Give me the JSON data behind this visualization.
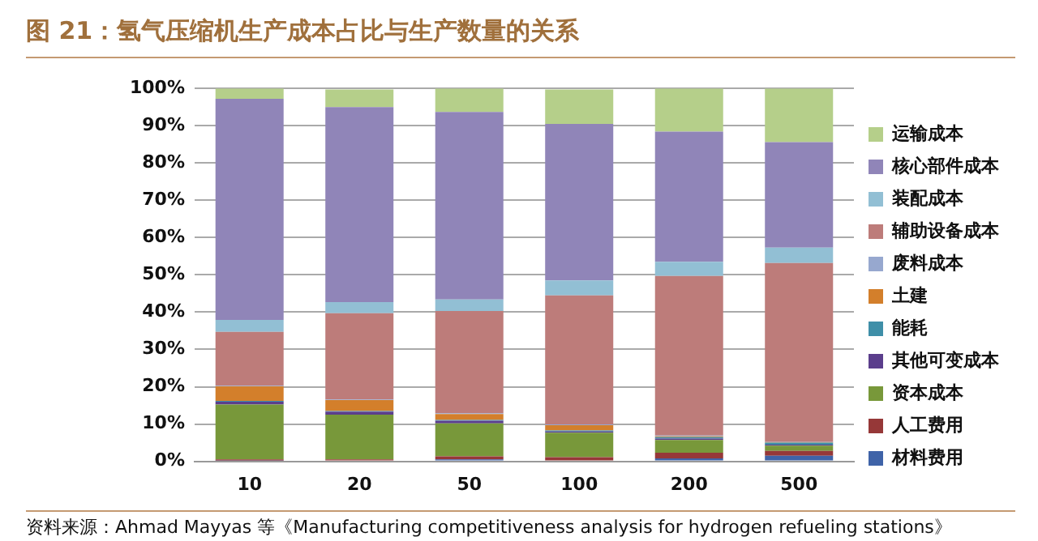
{
  "chart_data": {
    "type": "bar",
    "title": "图 21：氢气压缩机生产成本占比与生产数量的关系",
    "categories": [
      "10",
      "20",
      "50",
      "100",
      "200",
      "500"
    ],
    "stacked": true,
    "series": [
      {
        "name": "材料费用",
        "color": "#3f63a8",
        "values": [
          0.2,
          null,
          0.5,
          null,
          0.8,
          1.5
        ]
      },
      {
        "name": "人工费用",
        "color": "#963838",
        "values": [
          0.3,
          0.5,
          0.8,
          1.1,
          1.5,
          1.3
        ]
      },
      {
        "name": "资本成本",
        "color": "#78983a",
        "values": [
          14.7,
          12.0,
          8.9,
          6.6,
          3.4,
          1.4
        ]
      },
      {
        "name": "其他可变成本",
        "color": "#5b3e8c",
        "values": [
          0.8,
          0.8,
          0.7,
          0.3,
          0.4,
          0.3
        ]
      },
      {
        "name": "能耗",
        "color": "#3f8fa8",
        "values": [
          0.2,
          0.2,
          0.2,
          0.3,
          0.4,
          0.5
        ]
      },
      {
        "name": "土建",
        "color": "#d37f2b",
        "values": [
          3.9,
          2.9,
          1.6,
          1.4,
          0.2,
          0.1
        ]
      },
      {
        "name": "废料成本",
        "color": "#97a8cf",
        "values": [
          0.2,
          0.2,
          0.2,
          0.2,
          0.2,
          0.1
        ]
      },
      {
        "name": "辅助设备成本",
        "color": "#bd7c7a",
        "values": [
          14.4,
          23.1,
          27.4,
          34.6,
          42.8,
          48.0
        ]
      },
      {
        "name": "装配成本",
        "color": "#92bfd4",
        "values": [
          3.2,
          3.0,
          3.1,
          4.0,
          3.8,
          4.1
        ]
      },
      {
        "name": "核心部件成本",
        "color": "#9085b8",
        "values": [
          59.3,
          52.3,
          50.3,
          42.0,
          34.9,
          28.3
        ]
      },
      {
        "name": "运输成本",
        "color": "#b5cf8a",
        "values": [
          2.8,
          4.7,
          6.3,
          9.2,
          11.6,
          14.4
        ]
      }
    ],
    "ylim": [
      0,
      100
    ],
    "yticks": [
      {
        "value": 0,
        "label": "0%"
      },
      {
        "value": 10,
        "label": "10%"
      },
      {
        "value": 20,
        "label": "20%"
      },
      {
        "value": 30,
        "label": "30%"
      },
      {
        "value": 40,
        "label": "40%"
      },
      {
        "value": 50,
        "label": "50%"
      },
      {
        "value": 60,
        "label": "60%"
      },
      {
        "value": 70,
        "label": "70%"
      },
      {
        "value": 80,
        "label": "80%"
      },
      {
        "value": 90,
        "label": "90%"
      },
      {
        "value": 100,
        "label": "100%"
      }
    ],
    "grid": "y",
    "legend": "right",
    "annotations": [
      "资料来源：Ahmad Mayyas 等《Manufacturing competitiveness analysis for hydrogen refueling stations》"
    ]
  }
}
